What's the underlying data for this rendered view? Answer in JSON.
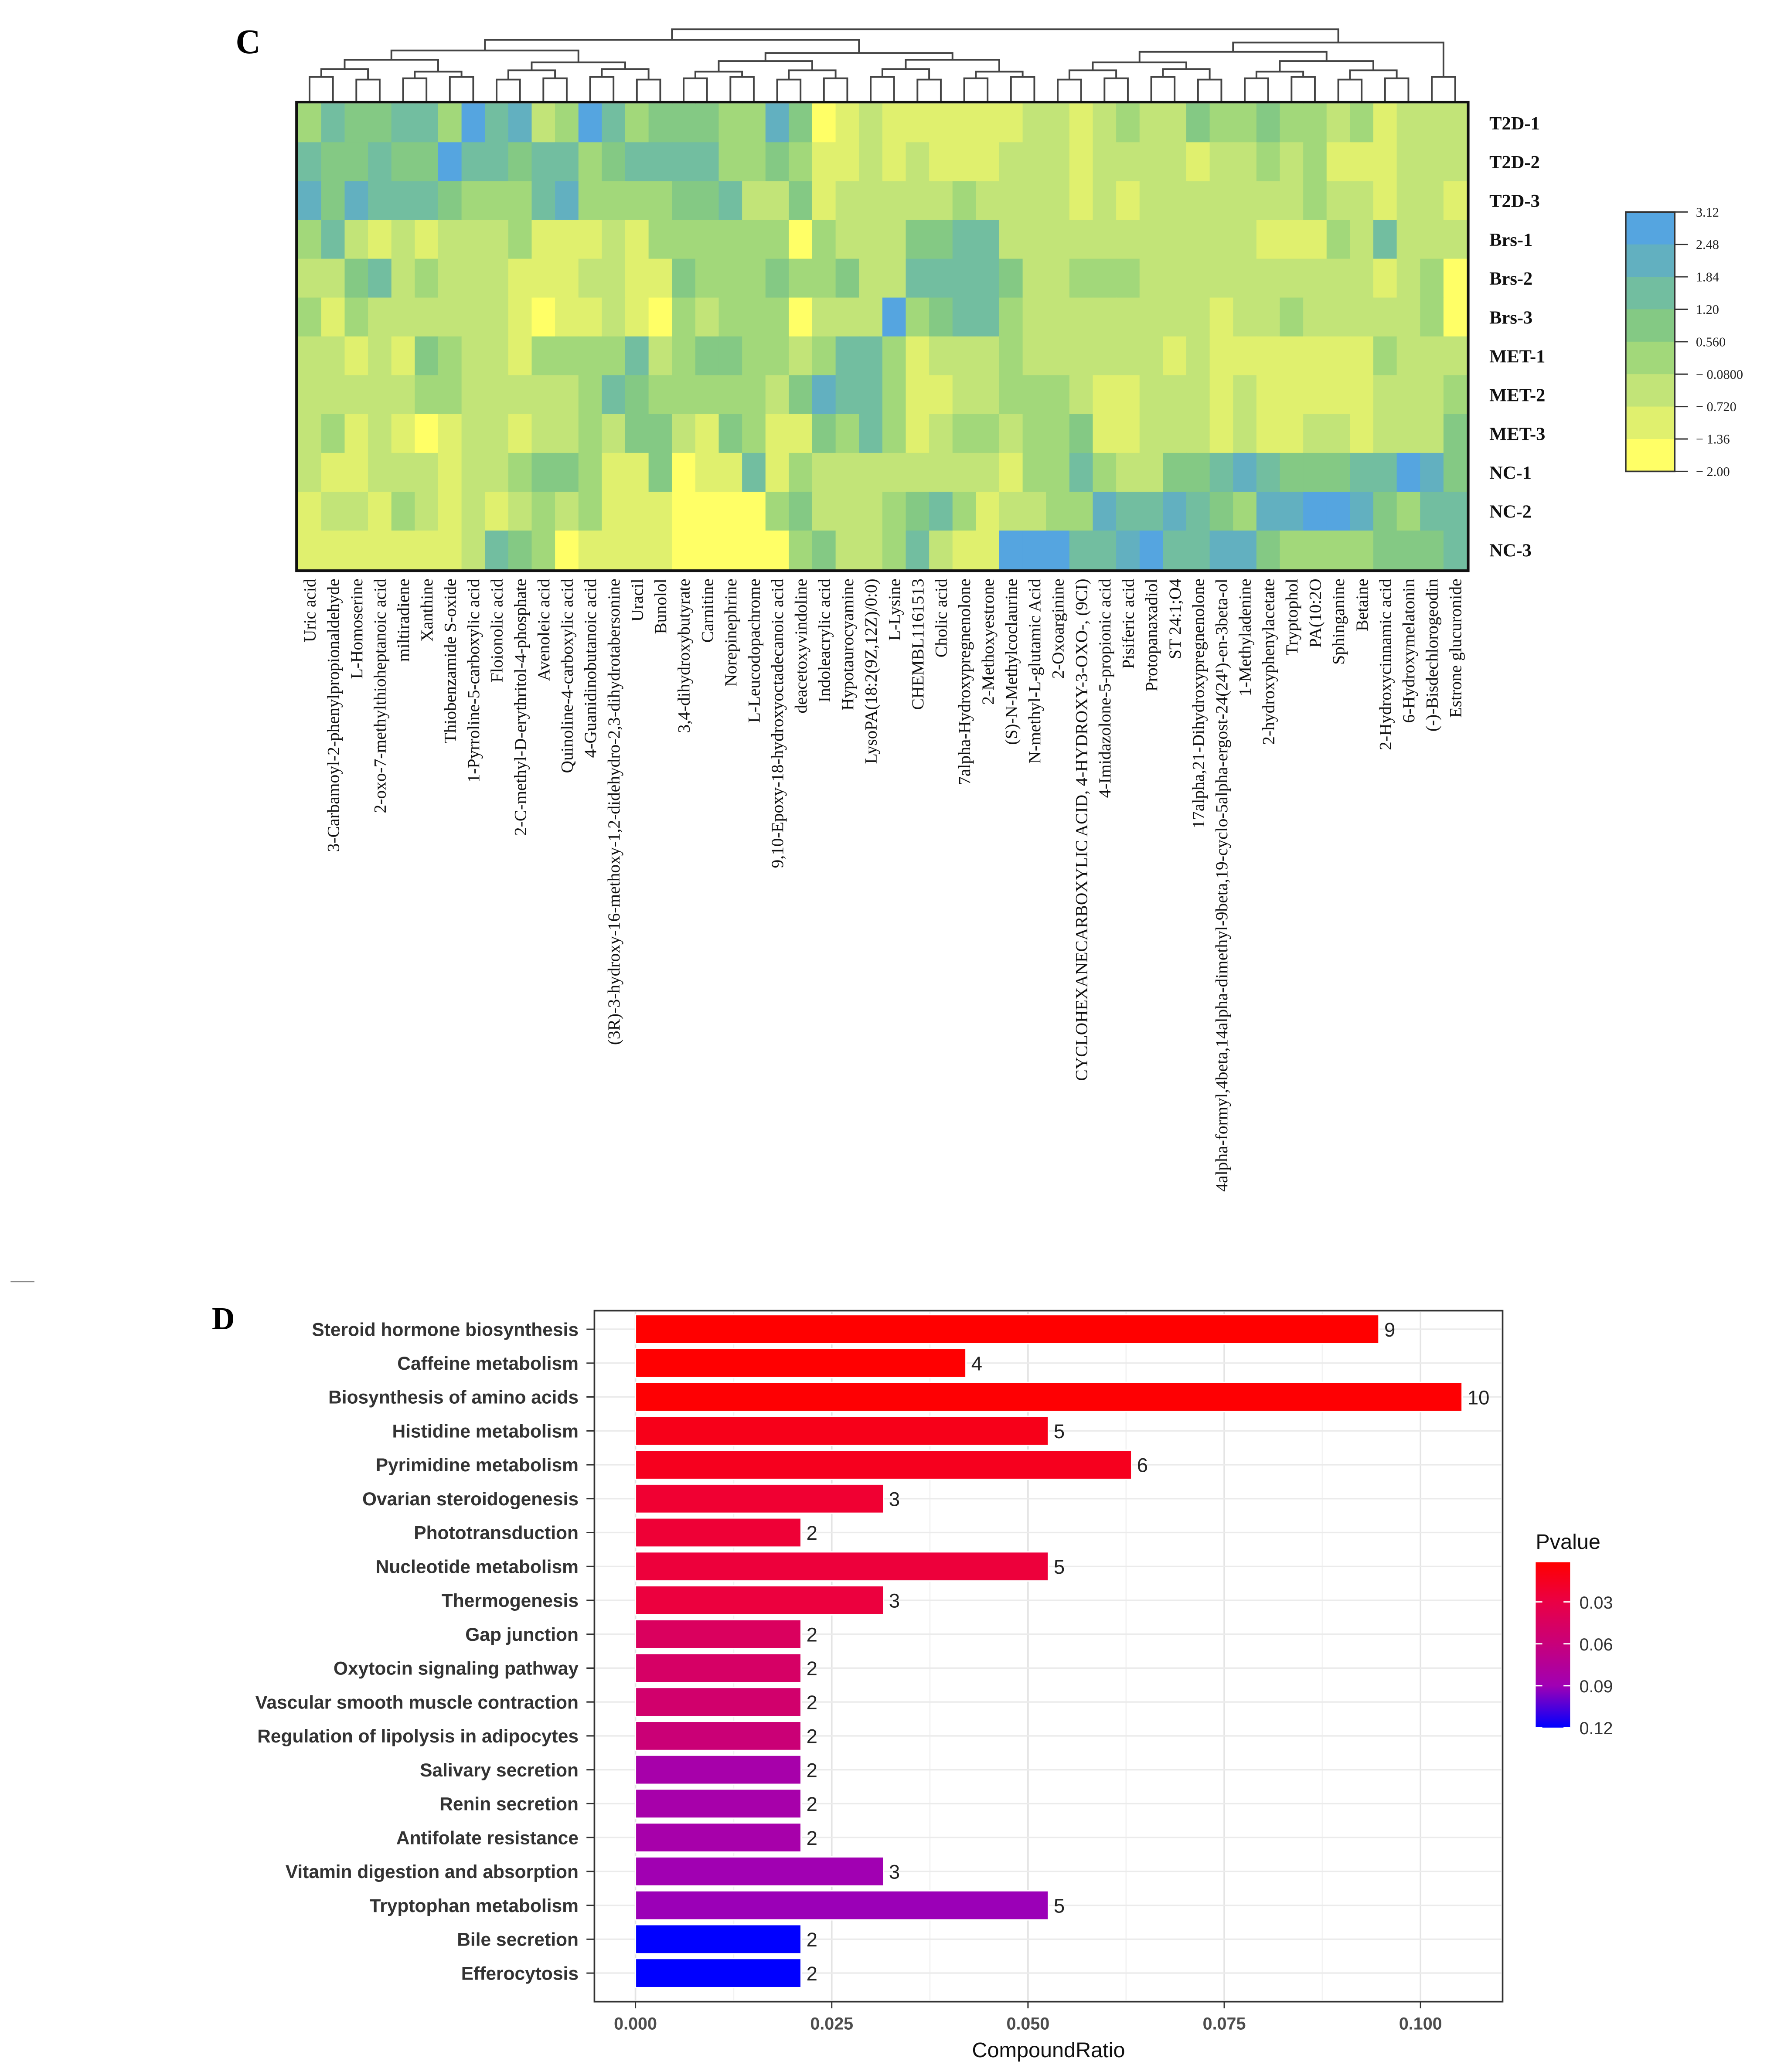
{
  "chart_data": [
    {
      "type": "heatmap",
      "panel_label": "C",
      "rows": [
        "T2D-1",
        "T2D-2",
        "T2D-3",
        "Brs-1",
        "Brs-2",
        "Brs-3",
        "MET-1",
        "MET-2",
        "MET-3",
        "NC-1",
        "NC-2",
        "NC-3"
      ],
      "columns": [
        "Uric acid",
        "3-Carbamoyl-2-phenylpropionaldehyde",
        "L-Homoserine",
        "2-oxo-7-methylthioheptanoic acid",
        "miltiradiene",
        "Xanthine",
        "Thiobenzamide S-oxide",
        "1-Pyrroline-5-carboxylic acid",
        "Floionolic acid",
        "2-C-methyl-D-erythritol-4-phosphate",
        "Avenoleic acid",
        "Quinoline-4-carboxylic acid",
        "4-Guanidinobutanoic acid",
        "(3R)-3-hydroxy-16-methoxy-1,2-didehydro-2,3-dihydrotabersonine",
        "Uracil",
        "Bunolol",
        "3,4-dihydroxybutyrate",
        "Carnitine",
        "Norepinephrine",
        "L-Leucodopachrome",
        "9,10-Epoxy-18-hydroxyoctadecanoic acid",
        "deacetoxyvindoline",
        "Indoleacrylic acid",
        "Hypotaurocyamine",
        "LysoPA(18:2(9Z,12Z)/0:0)",
        "L-Lysine",
        "CHEMBL1161513",
        "Cholic acid",
        "7alpha-Hydroxypregnenolone",
        "2-Methoxyestrone",
        "(S)-N-Methylcoclaurine",
        "N-methyl-L-glutamic Acid",
        "2-Oxoarginine",
        "CYCLOHEXANECARBOXYLIC ACID, 4-HYDROXY-3-OXO-, (9CI)",
        "4-Imidazolone-5-propionic acid",
        "Pisiferic acid",
        "Protopanaxadiol",
        "ST 24:1;O4",
        "17alpha,21-Dihydroxypregnenolone",
        "4alpha-formyl,4beta,14alpha-dimethyl-9beta,19-cyclo-5alpha-ergost-24(24¹)-en-3beta-ol",
        "1-Methyladenine",
        "2-hydroxyphenylacetate",
        "Tryptophol",
        "PA(10:2O",
        "Sphinganine",
        "Betaine",
        "2-Hydroxycinnamic acid",
        "6-Hydroxymelatonin",
        "(-)-Bisdechlorogeodin",
        "Estrone glucuronide"
      ],
      "values": [
        [
          0.2,
          1.5,
          0.9,
          0.9,
          1.5,
          1.5,
          0.2,
          2.8,
          1.5,
          2.2,
          -0.4,
          0.2,
          2.8,
          1.5,
          0.2,
          0.9,
          0.9,
          0.9,
          0.2,
          0.2,
          2.2,
          0.9,
          -1.7,
          -1,
          -0.4,
          -1,
          -1,
          -1,
          -1,
          -1,
          -1,
          -0.4,
          -0.4,
          -1,
          -0.4,
          0.2,
          -0.4,
          -0.4,
          0.9,
          0.2,
          0.2,
          0.9,
          0.2,
          0.2,
          -0.4,
          0.2,
          -1,
          -0.4,
          -0.4,
          -0.4
        ],
        [
          1.5,
          0.9,
          0.9,
          1.5,
          0.9,
          0.9,
          2.8,
          1.5,
          1.5,
          0.9,
          1.5,
          1.5,
          0.2,
          0.9,
          1.5,
          1.5,
          1.5,
          1.5,
          0.2,
          0.2,
          0.9,
          0.2,
          -1,
          -1,
          -0.4,
          -1,
          -0.4,
          -1,
          -1,
          -1,
          -0.4,
          -0.4,
          -0.4,
          -1,
          -0.4,
          -0.4,
          -0.4,
          -0.4,
          -1,
          -0.4,
          -0.4,
          0.2,
          -0.4,
          0.2,
          -1,
          -1,
          -1,
          -0.4,
          -0.4,
          -0.4
        ],
        [
          2.2,
          0.9,
          2.2,
          1.5,
          1.5,
          1.5,
          0.9,
          0.2,
          0.2,
          0.2,
          1.5,
          2.2,
          0.2,
          0.2,
          0.2,
          0.2,
          0.9,
          0.9,
          1.5,
          -0.4,
          -0.4,
          0.9,
          -1,
          -0.4,
          -0.4,
          -0.4,
          -0.4,
          -0.4,
          0.2,
          -0.4,
          -0.4,
          -0.4,
          -0.4,
          -1,
          -0.4,
          -1,
          -0.4,
          -0.4,
          -0.4,
          -0.4,
          -0.4,
          -0.4,
          -0.4,
          0.2,
          -0.4,
          -0.4,
          -1,
          -0.4,
          -0.4,
          -1
        ],
        [
          0.2,
          1.5,
          -0.4,
          -1,
          -0.4,
          -1,
          -0.4,
          -0.4,
          -0.4,
          0.2,
          -1,
          -1,
          -1,
          -0.4,
          -1,
          0.2,
          0.2,
          0.2,
          0.2,
          0.2,
          0.2,
          -1.7,
          0.2,
          -0.4,
          -0.4,
          -0.4,
          0.9,
          0.9,
          1.5,
          1.5,
          -0.4,
          -0.4,
          -0.4,
          -0.4,
          -0.4,
          -0.4,
          -0.4,
          -0.4,
          -0.4,
          -0.4,
          -0.4,
          -1,
          -1,
          -1,
          0.2,
          -0.4,
          1.5,
          -0.4,
          -0.4,
          -0.4
        ],
        [
          -0.4,
          -0.4,
          0.9,
          1.5,
          -0.4,
          0.2,
          -0.4,
          -0.4,
          -0.4,
          -1,
          -1,
          -1,
          -0.4,
          -0.4,
          -1,
          -1,
          0.9,
          0.2,
          0.2,
          0.2,
          0.9,
          0.2,
          0.2,
          0.9,
          -0.4,
          -0.4,
          1.5,
          1.5,
          1.5,
          1.5,
          0.9,
          -0.4,
          -0.4,
          0.2,
          0.2,
          0.2,
          -0.4,
          -0.4,
          -0.4,
          -0.4,
          -0.4,
          -0.4,
          -0.4,
          -0.4,
          -0.4,
          -0.4,
          -1,
          -0.4,
          0.2,
          -1.7
        ],
        [
          0.2,
          -1,
          0.2,
          -0.4,
          -0.4,
          -0.4,
          -0.4,
          -0.4,
          -0.4,
          -1,
          -1.7,
          -1,
          -1,
          -0.4,
          -1,
          -1.7,
          0.2,
          -0.4,
          0.2,
          0.2,
          0.2,
          -1.7,
          -0.4,
          -0.4,
          -0.4,
          2.8,
          0.2,
          0.9,
          1.5,
          1.5,
          0.2,
          -0.4,
          -0.4,
          -0.4,
          -0.4,
          -0.4,
          -0.4,
          -0.4,
          -0.4,
          -1,
          -0.4,
          -0.4,
          0.2,
          -0.4,
          -0.4,
          -0.4,
          -0.4,
          -0.4,
          0.2,
          -1.7
        ],
        [
          -0.4,
          -0.4,
          -1,
          -0.4,
          -1,
          0.9,
          0.2,
          -0.4,
          -0.4,
          -1,
          0.2,
          0.2,
          0.2,
          0.2,
          1.5,
          -0.4,
          0.2,
          0.9,
          0.9,
          0.2,
          0.2,
          -0.4,
          0.2,
          1.5,
          1.5,
          0.2,
          -1,
          -0.4,
          -0.4,
          -0.4,
          0.2,
          -0.4,
          -0.4,
          -0.4,
          -0.4,
          -0.4,
          -0.4,
          -1,
          -0.4,
          -1,
          -1,
          -1,
          -1,
          -1,
          -1,
          -1,
          0.2,
          -0.4,
          -0.4,
          -0.4
        ],
        [
          -0.4,
          -0.4,
          -0.4,
          -0.4,
          -0.4,
          0.2,
          0.2,
          -0.4,
          -0.4,
          -0.4,
          -0.4,
          -0.4,
          0.2,
          1.5,
          0.9,
          0.2,
          0.2,
          0.2,
          0.2,
          0.2,
          -0.4,
          0.9,
          2.2,
          1.5,
          1.5,
          0.2,
          -1,
          -1,
          -0.4,
          -0.4,
          0.2,
          0.2,
          0.2,
          -0.4,
          -1,
          -1,
          -0.4,
          -0.4,
          -0.4,
          -1,
          -0.4,
          -1,
          -1,
          -1,
          -1,
          -1,
          -0.4,
          -0.4,
          -0.4,
          0.2
        ],
        [
          -0.4,
          0.2,
          -1,
          -0.4,
          -1,
          -1.7,
          -1,
          -0.4,
          -0.4,
          -1,
          -0.4,
          -0.4,
          0.2,
          -0.4,
          0.9,
          0.9,
          -0.4,
          -1,
          0.9,
          0.2,
          -1,
          -1,
          0.9,
          0.2,
          1.5,
          0.2,
          -1,
          -0.4,
          0.2,
          0.2,
          -0.4,
          0.2,
          0.2,
          0.9,
          -1,
          -1,
          -0.4,
          -0.4,
          -0.4,
          -1,
          -0.4,
          -1,
          -1,
          -0.4,
          -0.4,
          -1,
          -0.4,
          -0.4,
          -0.4,
          0.9
        ],
        [
          -0.4,
          -1,
          -1,
          -0.4,
          -0.4,
          -0.4,
          -1,
          -0.4,
          -0.4,
          0.2,
          0.9,
          0.9,
          0.2,
          -1,
          -1,
          0.9,
          -1.7,
          -1,
          -1,
          1.5,
          -1,
          0.2,
          -0.4,
          -0.4,
          -0.4,
          -0.4,
          -0.4,
          -0.4,
          -0.4,
          -0.4,
          -1,
          0.2,
          0.2,
          1.5,
          0.2,
          -0.4,
          -0.4,
          0.9,
          0.9,
          1.5,
          2.2,
          1.5,
          0.9,
          0.9,
          0.9,
          1.5,
          1.5,
          2.8,
          2.2,
          0.9
        ],
        [
          -1,
          -0.4,
          -0.4,
          -1,
          0.2,
          -0.4,
          -1,
          -0.4,
          -1,
          -0.4,
          0.2,
          -0.4,
          0.2,
          -1,
          -1,
          -1,
          -1.7,
          -1.7,
          -1.7,
          -1.7,
          0.2,
          0.9,
          -0.4,
          -0.4,
          -0.4,
          0.2,
          0.9,
          1.5,
          0.2,
          -1,
          -0.4,
          -0.4,
          0.2,
          0.2,
          2.2,
          1.5,
          1.5,
          2.2,
          1.5,
          0.9,
          0.2,
          2.2,
          2.2,
          2.8,
          2.8,
          2.2,
          0.9,
          0.2,
          1.5,
          1.5
        ],
        [
          -1,
          -1,
          -1,
          -1,
          -1,
          -1,
          -1,
          -0.4,
          1.5,
          0.9,
          0.2,
          -1.7,
          -1,
          -1,
          -1,
          -1,
          -1.7,
          -1.7,
          -1.7,
          -1.7,
          -1.7,
          0.2,
          0.9,
          -0.4,
          -0.4,
          0.2,
          1.5,
          -0.4,
          -1,
          -1,
          2.8,
          2.8,
          2.8,
          1.5,
          1.5,
          2.2,
          2.8,
          1.5,
          1.5,
          2.2,
          2.2,
          0.9,
          0.2,
          0.2,
          0.2,
          0.2,
          0.9,
          0.9,
          0.9,
          1.5
        ]
      ],
      "color_scale": {
        "breaks": [
          -2.0,
          -1.36,
          -0.72,
          -0.08,
          0.56,
          1.2,
          1.84,
          2.48,
          3.12
        ],
        "tick_labels": [
          "3.12",
          "2.48",
          "1.84",
          "1.20",
          "0.560",
          "− 0.0800",
          "− 0.720",
          "− 1.36",
          "− 2.00"
        ],
        "colors": [
          "#FFFF66",
          "#E0F06E",
          "#C2E478",
          "#A2D87A",
          "#84C984",
          "#72BEA0",
          "#62B0C0",
          "#55A5E0"
        ]
      },
      "dendrogram": "column clustering"
    },
    {
      "type": "bar",
      "orientation": "horizontal",
      "panel_label": "D",
      "xlabel": "CompoundRatio",
      "ylabel": "",
      "xlim": [
        0,
        0.1053
      ],
      "xticks": [
        "0.000",
        "0.025",
        "0.050",
        "0.075",
        "0.100"
      ],
      "xtick_values": [
        0,
        0.025,
        0.05,
        0.075,
        0.1
      ],
      "grid": true,
      "categories": [
        "Steroid hormone biosynthesis",
        "Caffeine metabolism",
        "Biosynthesis of amino acids",
        "Histidine metabolism",
        "Pyrimidine metabolism",
        "Ovarian steroidogenesis",
        "Phototransduction",
        "Nucleotide metabolism",
        "Thermogenesis",
        "Gap junction",
        "Oxytocin signaling pathway",
        "Vascular smooth muscle contraction",
        "Regulation of lipolysis in adipocytes",
        "Salivary secretion",
        "Renin secretion",
        "Antifolate resistance",
        "Vitamin digestion and absorption",
        "Tryptophan metabolism",
        "Bile secretion",
        "Efferocytosis"
      ],
      "values": [
        0.0947,
        0.0421,
        0.1053,
        0.0526,
        0.0632,
        0.0316,
        0.0211,
        0.0526,
        0.0316,
        0.0211,
        0.0211,
        0.0211,
        0.0211,
        0.0211,
        0.0211,
        0.0211,
        0.0316,
        0.0526,
        0.0211,
        0.0211
      ],
      "counts": [
        "9",
        "4",
        "10",
        "5",
        "6",
        "3",
        "2",
        "5",
        "3",
        "2",
        "2",
        "2",
        "2",
        "2",
        "2",
        "2",
        "3",
        "5",
        "2",
        "2"
      ],
      "pvalues": [
        0.0016,
        0.002,
        0.003,
        0.012,
        0.014,
        0.022,
        0.024,
        0.026,
        0.027,
        0.044,
        0.048,
        0.052,
        0.058,
        0.085,
        0.085,
        0.085,
        0.089,
        0.091,
        0.12,
        0.12
      ],
      "legend": {
        "title": "Pvalue",
        "placement": "right",
        "tick_values": [
          0.03,
          0.06,
          0.09,
          0.12
        ],
        "tick_labels": [
          "0.03",
          "0.06",
          "0.09",
          "0.12"
        ],
        "range": [
          0.0016,
          0.12
        ],
        "color_stops": [
          {
            "p": 0.0016,
            "color": "#ff0000"
          },
          {
            "p": 0.03,
            "color": "#ea0045"
          },
          {
            "p": 0.06,
            "color": "#c8007a"
          },
          {
            "p": 0.09,
            "color": "#a000b4"
          },
          {
            "p": 0.12,
            "color": "#0000ff"
          }
        ]
      }
    }
  ]
}
